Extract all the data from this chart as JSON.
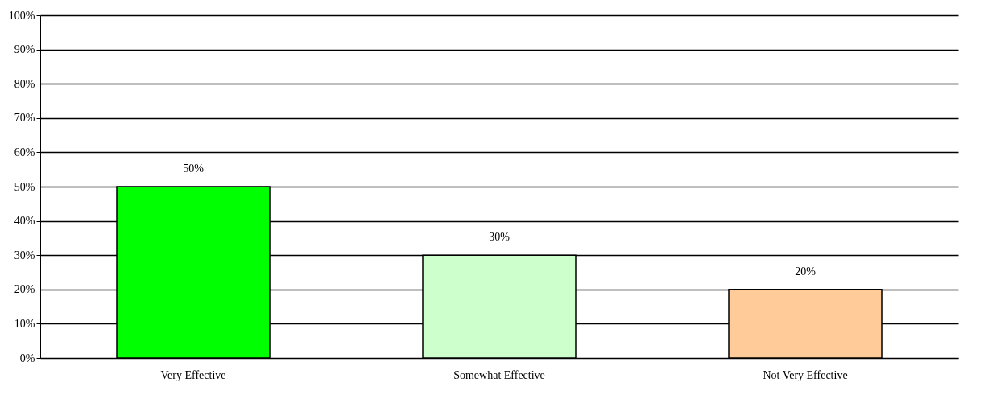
{
  "chart_data": {
    "type": "bar",
    "categories": [
      "Very Effective",
      "Somewhat Effective",
      "Not Very Effective"
    ],
    "values": [
      50,
      30,
      20
    ],
    "colors": [
      "#00ff00",
      "#ccffcc",
      "#ffcc99"
    ],
    "value_labels": [
      "50%",
      "30%",
      "20%"
    ],
    "ylim": [
      0,
      100
    ],
    "yticks": [
      {
        "value": 0,
        "label": "0%"
      },
      {
        "value": 10,
        "label": "10%"
      },
      {
        "value": 20,
        "label": "20%"
      },
      {
        "value": 30,
        "label": "30%"
      },
      {
        "value": 40,
        "label": "40%"
      },
      {
        "value": 50,
        "label": "50%"
      },
      {
        "value": 60,
        "label": "60%"
      },
      {
        "value": 70,
        "label": "70%"
      },
      {
        "value": 80,
        "label": "80%"
      },
      {
        "value": 90,
        "label": "90%"
      },
      {
        "value": 100,
        "label": "100%"
      }
    ],
    "grid": "y",
    "legend": false
  }
}
